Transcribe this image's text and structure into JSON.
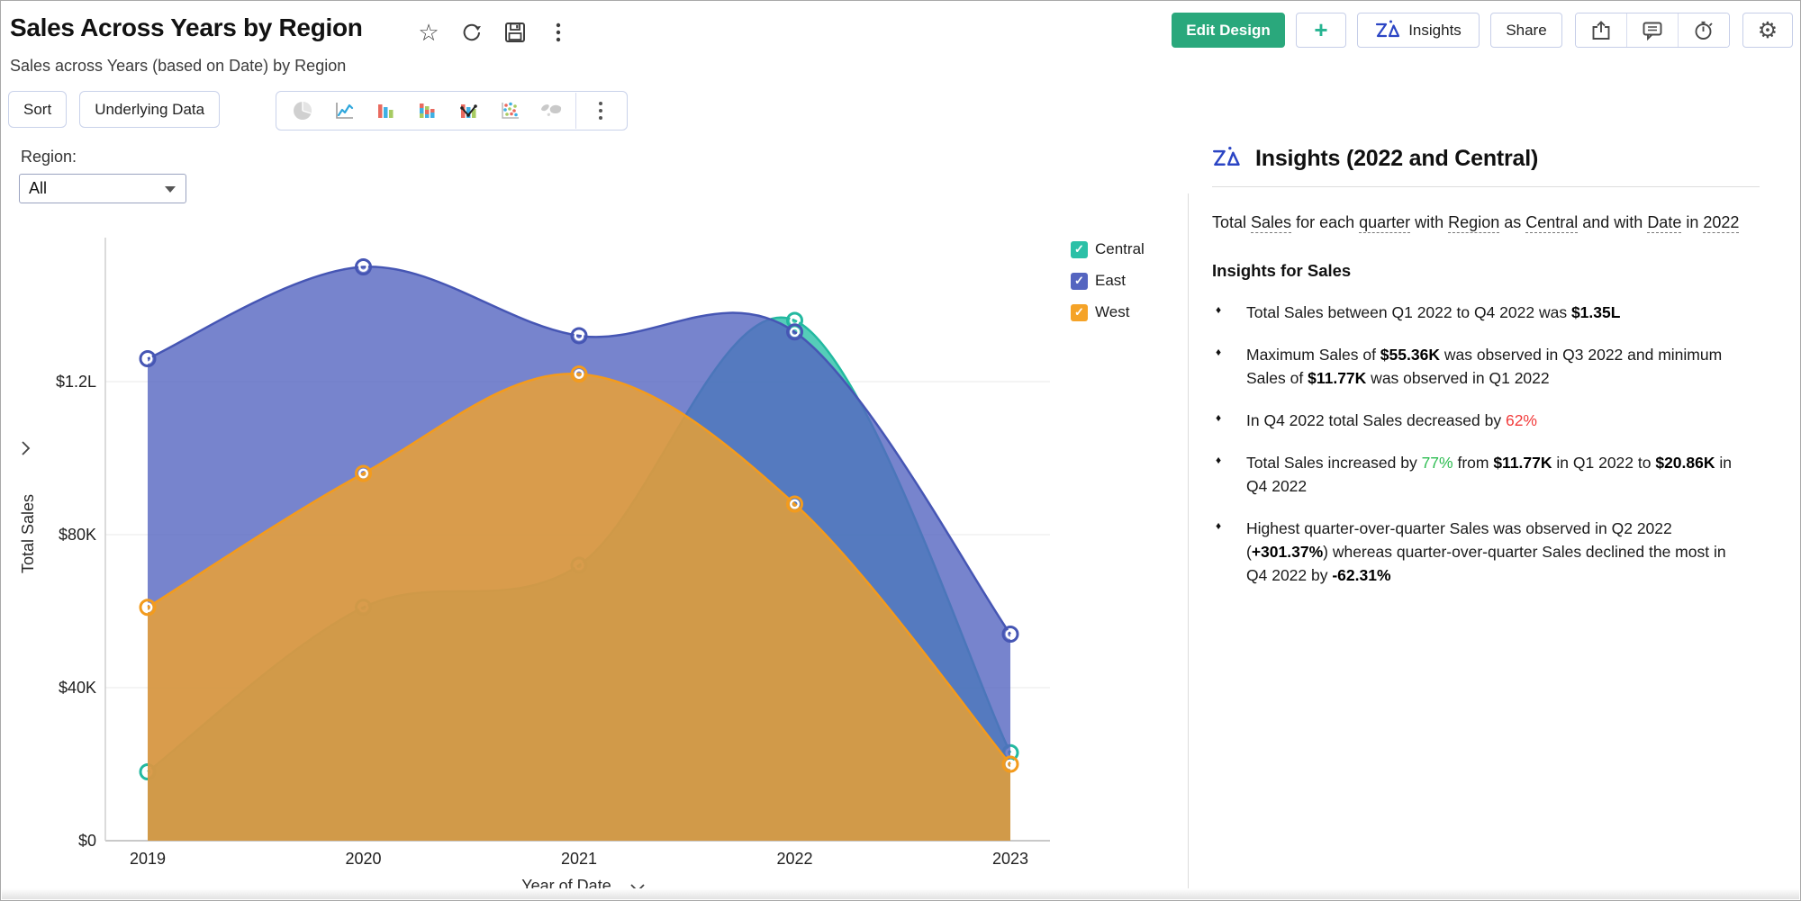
{
  "header": {
    "title": "Sales Across Years by Region",
    "subtitle": "Sales across Years (based on Date) by Region",
    "title_icons": [
      "favorite-star-icon",
      "refresh-icon",
      "save-icon",
      "more-vertical-icon"
    ],
    "actions": {
      "edit_design": "Edit Design",
      "plus": "+",
      "insights": "Insights",
      "share": "Share",
      "icon_buttons": [
        "export-icon",
        "comment-icon",
        "alarm-icon",
        "settings-gear-icon"
      ]
    },
    "colors": {
      "edit_design_bg": "#2aa87c",
      "zia_blue": "#2b45c4"
    }
  },
  "toolbar": {
    "sort_label": "Sort",
    "underlying_data_label": "Underlying Data",
    "chart_type_icons": [
      "pie-chart-icon",
      "line-chart-icon",
      "bar-chart-icon",
      "stacked-bar-icon",
      "combo-chart-icon",
      "scatter-chart-icon",
      "map-chart-icon",
      "more-vertical-icon"
    ]
  },
  "filter": {
    "label": "Region:",
    "value": "All"
  },
  "chart_data": {
    "type": "area",
    "x": [
      "2019",
      "2020",
      "2021",
      "2022",
      "2023"
    ],
    "series": [
      {
        "name": "Central",
        "color": "#2bc0a7",
        "line_color": "#23b9a0",
        "fill_opacity": 0.8,
        "values": [
          18000,
          61000,
          72000,
          136000,
          23000
        ]
      },
      {
        "name": "East",
        "color": "#5565c0",
        "line_color": "#4656b4",
        "fill_opacity": 0.8,
        "values": [
          126000,
          150000,
          132000,
          133000,
          54000
        ]
      },
      {
        "name": "West",
        "color": "#f5a328",
        "line_color": "#f39b1d",
        "fill_opacity": 0.78,
        "values": [
          61000,
          96000,
          122000,
          88000,
          20000
        ]
      }
    ],
    "xlabel": "Year of Date",
    "ylabel": "Total Sales",
    "yticks": [
      {
        "value": 0,
        "label": "$0"
      },
      {
        "value": 40000,
        "label": "$40K"
      },
      {
        "value": 80000,
        "label": "$80K"
      },
      {
        "value": 120000,
        "label": "$1.2L"
      }
    ],
    "ylim": [
      0,
      158000
    ],
    "grid": true,
    "legend_position": "top-right",
    "legend": [
      "Central",
      "East",
      "West"
    ]
  },
  "insights": {
    "title": "Insights (2022 and Central)",
    "summary": [
      {
        "t": "Total "
      },
      {
        "t": "Sales",
        "u": 1
      },
      {
        "t": " for each "
      },
      {
        "t": "quarter",
        "u": 1
      },
      {
        "t": " with "
      },
      {
        "t": "Region",
        "u": 1
      },
      {
        "t": " as "
      },
      {
        "t": "Central",
        "u": 1
      },
      {
        "t": " and with "
      },
      {
        "t": "Date",
        "u": 1
      },
      {
        "t": " in "
      },
      {
        "t": "2022",
        "u": 1
      }
    ],
    "section_title": "Insights for Sales",
    "bullets": [
      [
        {
          "t": "Total Sales between Q1 2022 to Q4 2022 was "
        },
        {
          "t": "$1.35L",
          "b": 1
        }
      ],
      [
        {
          "t": "Maximum Sales of "
        },
        {
          "t": "$55.36K",
          "b": 1
        },
        {
          "t": " was observed in Q3 2022 and minimum Sales of "
        },
        {
          "t": "$11.77K",
          "b": 1
        },
        {
          "t": " was observed in Q1 2022"
        }
      ],
      [
        {
          "t": "In Q4 2022 total Sales decreased by "
        },
        {
          "t": "62%",
          "c": "red"
        }
      ],
      [
        {
          "t": "Total Sales increased by "
        },
        {
          "t": "77%",
          "c": "green"
        },
        {
          "t": " from "
        },
        {
          "t": "$11.77K",
          "b": 1
        },
        {
          "t": " in Q1 2022 to "
        },
        {
          "t": "$20.86K",
          "b": 1
        },
        {
          "t": " in Q4 2022"
        }
      ],
      [
        {
          "t": "Highest quarter-over-quarter Sales was observed in Q2 2022 ("
        },
        {
          "t": "+301.37%",
          "b": 1
        },
        {
          "t": ") whereas quarter-over-quarter Sales declined the most in Q4 2022 by "
        },
        {
          "t": "-62.31%",
          "b": 1
        }
      ]
    ],
    "status_colors": {
      "negative": "#f23b3b",
      "positive": "#2ebd52"
    }
  }
}
